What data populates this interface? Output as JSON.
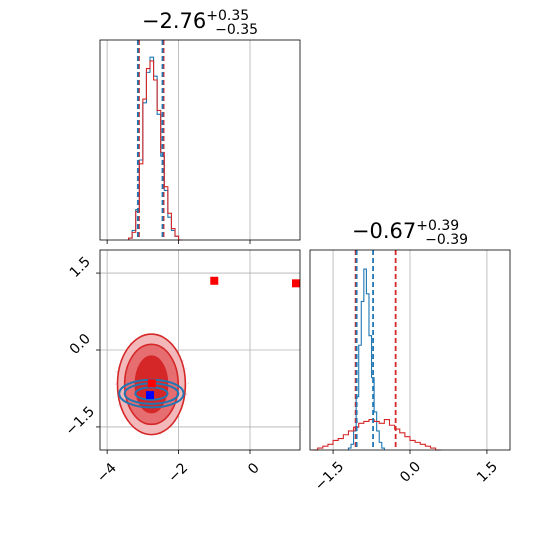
{
  "chart_data": [
    {
      "type": "histogram",
      "panel": "top-left",
      "title": {
        "main": "−2.76",
        "sup": "+0.35",
        "sub": "−0.35"
      },
      "xlim": [
        -4.2,
        1.4
      ],
      "grid": true,
      "x_ticks": [
        -4,
        -2,
        0
      ],
      "quantile_lines_red": [
        -3.11,
        -2.42
      ],
      "quantile_lines_blue": [
        -3.14,
        -2.45
      ],
      "series": [
        {
          "color": "#1f77b4",
          "edges": [
            -3.4,
            -3.3,
            -3.2,
            -3.1,
            -3.0,
            -2.9,
            -2.8,
            -2.7,
            -2.6,
            -2.5,
            -2.4,
            -2.3,
            -2.2,
            -2.1,
            -2.0,
            -1.9
          ],
          "counts": [
            0.01,
            0.05,
            0.16,
            0.42,
            0.72,
            0.88,
            0.96,
            0.86,
            0.66,
            0.44,
            0.26,
            0.12,
            0.05,
            0.02,
            0.0
          ]
        },
        {
          "color": "#d62728",
          "edges": [
            -3.4,
            -3.3,
            -3.2,
            -3.1,
            -3.0,
            -2.9,
            -2.8,
            -2.7,
            -2.6,
            -2.5,
            -2.4,
            -2.3,
            -2.2,
            -2.1,
            -2.0,
            -1.9
          ],
          "counts": [
            0.01,
            0.04,
            0.15,
            0.4,
            0.74,
            0.9,
            0.94,
            0.84,
            0.68,
            0.46,
            0.28,
            0.14,
            0.06,
            0.02,
            0.0
          ]
        }
      ]
    },
    {
      "type": "scatter",
      "panel": "bottom-left",
      "xlim": [
        -4.2,
        1.4
      ],
      "ylim": [
        -1.95,
        1.95
      ],
      "grid": true,
      "x_ticks": [
        -4,
        -2,
        0
      ],
      "y_ticks": [
        -1.5,
        0.0,
        1.5
      ],
      "x_tick_labels": [
        "−4",
        "−2",
        "0"
      ],
      "y_tick_labels": [
        "−1.5",
        "0.0",
        "1.5"
      ],
      "red_points": [
        [
          -1.0,
          1.35
        ],
        [
          1.4,
          1.3
        ],
        [
          -2.75,
          -0.65
        ]
      ],
      "blue_point": [
        -2.8,
        -0.88
      ],
      "red_contour": {
        "center": [
          -2.76,
          -0.67
        ],
        "radii": [
          [
            0.45,
            0.55
          ],
          [
            0.75,
            0.78
          ],
          [
            0.95,
            0.98
          ]
        ]
      },
      "blue_contour": {
        "center": [
          -2.76,
          -0.85
        ],
        "radii": [
          [
            0.45,
            0.12
          ],
          [
            0.75,
            0.2
          ],
          [
            0.9,
            0.27
          ]
        ]
      }
    },
    {
      "type": "histogram",
      "panel": "bottom-right",
      "title": {
        "main": "−0.67",
        "sup": "+0.39",
        "sub": "−0.39"
      },
      "xlim": [
        -1.95,
        1.95
      ],
      "grid": true,
      "x_ticks": [
        -1.5,
        0.0,
        1.5
      ],
      "x_tick_labels": [
        "−1.5",
        "0.0",
        "1.5"
      ],
      "quantile_lines_red": [
        -1.06,
        -0.28
      ],
      "quantile_lines_blue": [
        -1.04,
        -0.72
      ],
      "series": [
        {
          "color": "#1f77b4",
          "edges": [
            -1.2,
            -1.15,
            -1.1,
            -1.05,
            -1.0,
            -0.95,
            -0.9,
            -0.85,
            -0.8,
            -0.75,
            -0.7,
            -0.65,
            -0.6,
            -0.55,
            -0.5
          ],
          "counts": [
            0.01,
            0.03,
            0.1,
            0.28,
            0.55,
            0.78,
            0.95,
            0.82,
            0.6,
            0.38,
            0.2,
            0.1,
            0.04,
            0.01
          ]
        },
        {
          "color": "#d62728",
          "edges": [
            -1.9,
            -1.8,
            -1.7,
            -1.6,
            -1.5,
            -1.4,
            -1.3,
            -1.2,
            -1.1,
            -1.0,
            -0.9,
            -0.8,
            -0.7,
            -0.6,
            -0.5,
            -0.4,
            -0.3,
            -0.2,
            -0.1,
            0.0,
            0.1,
            0.2,
            0.3,
            0.4,
            0.5,
            0.6
          ],
          "counts": [
            0.0,
            0.01,
            0.02,
            0.03,
            0.05,
            0.06,
            0.08,
            0.1,
            0.12,
            0.14,
            0.15,
            0.16,
            0.15,
            0.14,
            0.16,
            0.13,
            0.11,
            0.09,
            0.07,
            0.05,
            0.04,
            0.03,
            0.02,
            0.01,
            0.0
          ]
        }
      ]
    }
  ]
}
